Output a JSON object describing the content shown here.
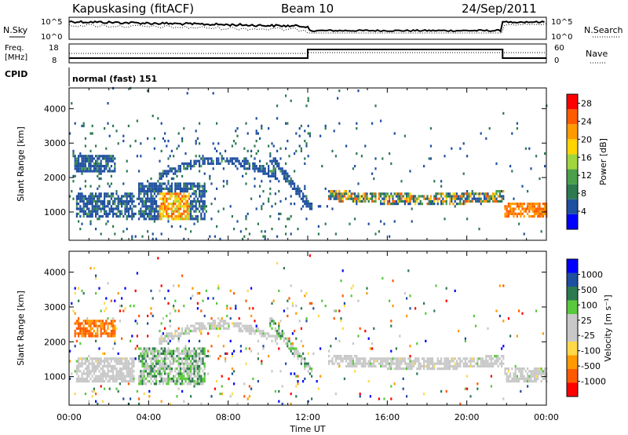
{
  "header": {
    "station": "Kapuskasing (fitACF)",
    "beam": "Beam 10",
    "date": "24/Sep/2011"
  },
  "noise_panel": {
    "left_label": "N.Sky",
    "right_label": "N.Search",
    "y_ticks": [
      "10^5",
      "10^0"
    ]
  },
  "freq_panel": {
    "left_label_1": "Freq.",
    "left_label_2": "[MHz]",
    "left_ticks": [
      "18",
      "8"
    ],
    "right_ticks": [
      "60",
      "0"
    ],
    "right_label": "Nave",
    "cpid_label": "CPID",
    "mode_text": "normal (fast) 151"
  },
  "colors": {
    "power": [
      "#0000ff",
      "#1f4fa0",
      "#2d7a50",
      "#4ca04c",
      "#a0d63c",
      "#ffd400",
      "#ff9a00",
      "#ff5a00",
      "#ff0000"
    ],
    "velocity": [
      "#ff0000",
      "#ff5a00",
      "#ff9a00",
      "#ffd94a",
      "#c8c8c8",
      "#c8c8c8",
      "#5ac83c",
      "#2d7a50",
      "#1f4fa0",
      "#0000ff"
    ]
  },
  "chart_data": [
    {
      "type": "heatmap",
      "quantity": "power",
      "xlabel": "",
      "ylabel": "Slant Range [km]",
      "x_ticks": [
        "00:00",
        "04:00",
        "08:00",
        "12:00",
        "16:00",
        "20:00",
        "00:00"
      ],
      "y_ticks": [
        "1000",
        "2000",
        "3000",
        "4000"
      ],
      "x_range_hours": [
        0,
        24
      ],
      "y_range_km": [
        180,
        4600
      ],
      "colorbar_label": "Power [dB]",
      "colorbar_ticks": [
        "4",
        "8",
        "12",
        "16",
        "20",
        "24",
        "28"
      ],
      "colorbar_range": [
        0,
        30
      ]
    },
    {
      "type": "heatmap",
      "quantity": "velocity",
      "xlabel": "Time UT",
      "ylabel": "Slant Range [km]",
      "x_ticks": [
        "00:00",
        "04:00",
        "08:00",
        "12:00",
        "16:00",
        "20:00",
        "00:00"
      ],
      "y_ticks": [
        "1000",
        "2000",
        "3000",
        "4000"
      ],
      "x_range_hours": [
        0,
        24
      ],
      "y_range_km": [
        180,
        4600
      ],
      "colorbar_label": "Velocity [m s⁻¹]",
      "colorbar_ticks": [
        "1000",
        "500",
        "100",
        "25",
        "-25",
        "-100",
        "-500",
        "-1000"
      ]
    }
  ]
}
